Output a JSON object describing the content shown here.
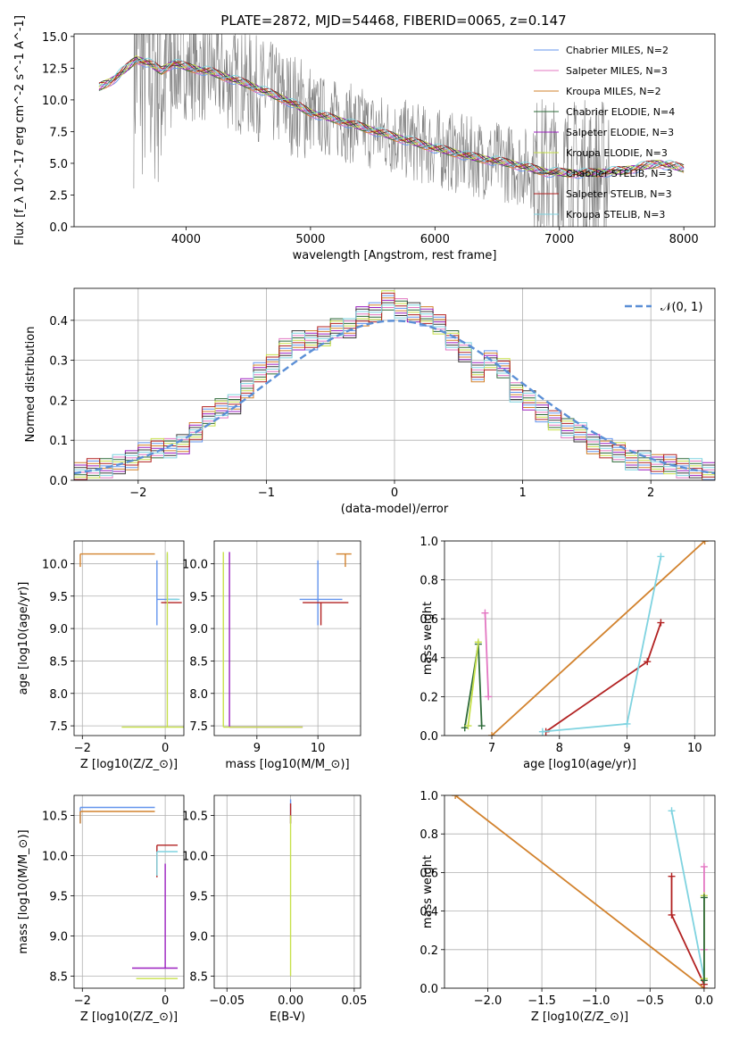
{
  "figure": {
    "title": "PLATE=2872, MJD=54468, FIBERID=0065, z=0.147"
  },
  "colors": {
    "observed": "#808080",
    "models": [
      "#6495ed",
      "#e377c2",
      "#d2822d",
      "#2e6b3a",
      "#9b1fbf",
      "#c7e04a",
      "#3c3c3c",
      "#b22222",
      "#7fd3e0"
    ],
    "normal": "#5b8fd6"
  },
  "legend": {
    "models": [
      "Chabrier MILES, N$_{SSP}$=2",
      "Salpeter MILES, N$_{SSP}$=3",
      "Kroupa MILES, N$_{SSP}$=2",
      "Chabrier ELODIE, N$_{SSP}$=4",
      "Salpeter ELODIE, N$_{SSP}$=3",
      "Kroupa ELODIE, N$_{SSP}$=3",
      "Chabrier STELIB, N$_{SSP}$=3",
      "Salpeter STELIB, N$_{SSP}$=3",
      "Kroupa STELIB, N$_{SSP}$=3"
    ],
    "normal": "𝒩(0, 1)"
  },
  "chart_data": [
    {
      "id": "spectrum",
      "type": "line",
      "title": "PLATE=2872, MJD=54468, FIBERID=0065, z=0.147",
      "xlabel": "wavelength [Angstrom, rest frame]",
      "ylabel": "Flux [f_λ 10^-17 erg cm^-2 s^-1 A^-1]",
      "xlim": [
        3100,
        8250
      ],
      "ylim": [
        0,
        15.2
      ],
      "xticks": [
        4000,
        5000,
        6000,
        7000,
        8000
      ],
      "yticks": [
        0.0,
        2.5,
        5.0,
        7.5,
        10.0,
        12.5,
        15.0
      ],
      "ytick_labels": [
        "0.0",
        "2.5",
        "5.0",
        "7.5",
        "10.0",
        "12.5",
        "15.0"
      ],
      "model_continuum": {
        "x": [
          3300,
          3400,
          3500,
          3600,
          3700,
          3800,
          3900,
          4000,
          4200,
          4500,
          4800,
          5000,
          5300,
          5600,
          6000,
          6300,
          6600,
          6900,
          7200,
          7500,
          7800,
          8000
        ],
        "y": [
          11.0,
          11.5,
          12.3,
          13.2,
          12.9,
          12.3,
          12.9,
          12.6,
          12.2,
          11.2,
          10.0,
          9.0,
          8.2,
          7.3,
          6.2,
          5.5,
          5.0,
          4.3,
          4.2,
          4.4,
          5.0,
          4.6
        ]
      },
      "grid": false,
      "legend_position": "top-right"
    },
    {
      "id": "residuals",
      "type": "histogram",
      "xlabel": "(data-model)/error",
      "ylabel": "Normed distribution",
      "xlim": [
        -2.5,
        2.5
      ],
      "ylim": [
        0,
        0.48
      ],
      "xticks": [
        -2,
        -1,
        0,
        1,
        2
      ],
      "xtick_labels": [
        "−2",
        "−1",
        "0",
        "1",
        "2"
      ],
      "yticks": [
        0.0,
        0.1,
        0.2,
        0.3,
        0.4
      ],
      "ytick_labels": [
        "0.0",
        "0.1",
        "0.2",
        "0.3",
        "0.4"
      ],
      "bin_edges_start": -2.5,
      "bin_width": 0.1,
      "hist": [
        0.02,
        0.03,
        0.03,
        0.04,
        0.05,
        0.07,
        0.08,
        0.08,
        0.09,
        0.12,
        0.16,
        0.18,
        0.19,
        0.23,
        0.27,
        0.29,
        0.33,
        0.35,
        0.35,
        0.36,
        0.38,
        0.38,
        0.41,
        0.42,
        0.45,
        0.43,
        0.42,
        0.41,
        0.39,
        0.35,
        0.32,
        0.27,
        0.3,
        0.28,
        0.22,
        0.2,
        0.17,
        0.15,
        0.13,
        0.12,
        0.09,
        0.08,
        0.07,
        0.05,
        0.05,
        0.04,
        0.04,
        0.03,
        0.03,
        0.02
      ],
      "grid": true,
      "legend_position": "top-right"
    },
    {
      "id": "age-vs-z",
      "type": "scatter",
      "xlabel": "Z [log10(Z/Z_⊙)]",
      "ylabel": "age [log10(age/yr)]",
      "xlim": [
        -2.2,
        0.45
      ],
      "ylim": [
        7.35,
        10.35
      ],
      "xticks": [
        -2,
        0
      ],
      "xtick_labels": [
        "−2",
        "0"
      ],
      "yticks": [
        7.5,
        8.0,
        8.5,
        9.0,
        9.5,
        10.0
      ],
      "ytick_labels": [
        "7.5",
        "8.0",
        "8.5",
        "9.0",
        "9.5",
        "10.0"
      ],
      "errorbars": [
        {
          "x": -2.05,
          "y": 10.15,
          "xerr": [
            0.0,
            1.8
          ],
          "yerr": [
            0.2,
            0.0
          ],
          "series": 2
        },
        {
          "x": -0.2,
          "y": 9.45,
          "xerr": [
            0.0,
            0.5
          ],
          "yerr": [
            0.4,
            0.6
          ],
          "series": 0
        },
        {
          "x": -0.1,
          "y": 9.4,
          "xerr": [
            0.0,
            0.5
          ],
          "yerr": [
            0.0,
            0.0
          ],
          "series": 7
        },
        {
          "x": 0.05,
          "y": 9.45,
          "xerr": [
            0.0,
            0.3
          ],
          "yerr": [
            0.0,
            0.7
          ],
          "series": 8
        },
        {
          "x": 0.05,
          "y": 7.48,
          "xerr": [
            1.1,
            0.4
          ],
          "yerr": [
            0.0,
            2.7
          ],
          "series": 5
        }
      ],
      "grid": true
    },
    {
      "id": "age-vs-mass",
      "type": "scatter",
      "xlabel": "mass [log10(M/M_⊙)]",
      "ylabel": "",
      "xlim": [
        8.3,
        10.7
      ],
      "ylim": [
        7.35,
        10.35
      ],
      "xticks": [
        9,
        10
      ],
      "xtick_labels": [
        "9",
        "10"
      ],
      "yticks": [
        7.5,
        8.0,
        8.5,
        9.0,
        9.5,
        10.0
      ],
      "ytick_labels": [
        "7.5",
        "8.0",
        "8.5",
        "9.0",
        "9.5",
        "10.0"
      ],
      "errorbars": [
        {
          "x": 10.0,
          "y": 9.45,
          "xerr": [
            0.3,
            0.4
          ],
          "yerr": [
            0.4,
            0.6
          ],
          "series": 0
        },
        {
          "x": 10.05,
          "y": 9.4,
          "xerr": [
            0.3,
            0.45
          ],
          "yerr": [
            0.35,
            0.0
          ],
          "series": 7
        },
        {
          "x": 10.45,
          "y": 10.15,
          "xerr": [
            0.15,
            0.1
          ],
          "yerr": [
            0.2,
            0.0
          ],
          "series": 2
        },
        {
          "x": 8.55,
          "y": 7.48,
          "xerr": [
            0.0,
            1.2
          ],
          "yerr": [
            0.0,
            2.7
          ],
          "series": 4
        },
        {
          "x": 8.45,
          "y": 7.48,
          "xerr": [
            0.0,
            1.3
          ],
          "yerr": [
            0.0,
            2.7
          ],
          "series": 5
        }
      ],
      "grid": true
    },
    {
      "id": "massweight-vs-age",
      "type": "line",
      "xlabel": "age [log10(age/yr)]",
      "ylabel": "mass weight",
      "xlim": [
        6.3,
        10.3
      ],
      "ylim": [
        0,
        1.0
      ],
      "xticks": [
        7,
        8,
        9,
        10
      ],
      "xtick_labels": [
        "7",
        "8",
        "9",
        "10"
      ],
      "yticks": [
        0.0,
        0.2,
        0.4,
        0.6,
        0.8,
        1.0
      ],
      "ytick_labels": [
        "0.0",
        "0.2",
        "0.4",
        "0.6",
        "0.8",
        "1.0"
      ],
      "series": [
        {
          "color": 2,
          "x": [
            7.0,
            10.15
          ],
          "y": [
            0.0,
            1.0
          ]
        },
        {
          "color": 7,
          "x": [
            7.8,
            9.3,
            9.5
          ],
          "y": [
            0.02,
            0.38,
            0.58
          ]
        },
        {
          "color": 8,
          "x": [
            7.75,
            9.0,
            9.5
          ],
          "y": [
            0.02,
            0.06,
            0.92
          ]
        },
        {
          "color": 1,
          "x": [
            6.9,
            6.95
          ],
          "y": [
            0.63,
            0.2
          ]
        },
        {
          "color": 3,
          "x": [
            6.6,
            6.8,
            6.85
          ],
          "y": [
            0.04,
            0.47,
            0.05
          ]
        },
        {
          "color": 5,
          "x": [
            6.65,
            6.8
          ],
          "y": [
            0.05,
            0.48
          ]
        }
      ],
      "grid": true
    },
    {
      "id": "mass-vs-z",
      "type": "scatter",
      "xlabel": "Z [log10(Z/Z_⊙)]",
      "ylabel": "mass [log10(M/M_⊙)]",
      "xlim": [
        -2.2,
        0.45
      ],
      "ylim": [
        8.35,
        10.75
      ],
      "xticks": [
        -2,
        0
      ],
      "xtick_labels": [
        "−2",
        "0"
      ],
      "yticks": [
        8.5,
        9.0,
        9.5,
        10.0,
        10.5
      ],
      "ytick_labels": [
        "8.5",
        "9.0",
        "9.5",
        "10.0",
        "10.5"
      ],
      "errorbars": [
        {
          "x": -2.05,
          "y": 10.6,
          "xerr": [
            0.0,
            1.8
          ],
          "yerr": [
            0.2,
            0.0
          ],
          "series": 0
        },
        {
          "x": -2.05,
          "y": 10.55,
          "xerr": [
            0.0,
            1.8
          ],
          "yerr": [
            0.15,
            0.0
          ],
          "series": 2
        },
        {
          "x": -0.2,
          "y": 10.13,
          "xerr": [
            0.0,
            0.5
          ],
          "yerr": [
            0.4,
            0.0
          ],
          "series": 7
        },
        {
          "x": -0.2,
          "y": 10.05,
          "xerr": [
            0.0,
            0.5
          ],
          "yerr": [
            0.3,
            0.0
          ],
          "series": 8
        },
        {
          "x": 0.0,
          "y": 8.6,
          "xerr": [
            0.8,
            0.3
          ],
          "yerr": [
            0.0,
            1.3
          ],
          "series": 4
        },
        {
          "x": 0.0,
          "y": 8.47,
          "xerr": [
            0.7,
            0.3
          ],
          "yerr": [
            0.0,
            0.0
          ],
          "series": 5
        }
      ],
      "grid": true
    },
    {
      "id": "mass-vs-ebv",
      "type": "scatter",
      "xlabel": "E(B-V)",
      "ylabel": "",
      "xlim": [
        -0.06,
        0.055
      ],
      "ylim": [
        8.35,
        10.75
      ],
      "xticks": [
        -0.05,
        0.0,
        0.05
      ],
      "xtick_labels": [
        "−0.05",
        "0.00",
        "0.05"
      ],
      "yticks": [
        8.5,
        9.0,
        9.5,
        10.0,
        10.5
      ],
      "ytick_labels": [
        "8.5",
        "9.0",
        "9.5",
        "10.0",
        "10.5"
      ],
      "errorbars": [
        {
          "x": 0.0,
          "y": 10.6,
          "xerr": [
            0.0,
            0.0
          ],
          "yerr": [
            0.2,
            0.1
          ],
          "series": 0
        },
        {
          "x": 0.0,
          "y": 10.55,
          "xerr": [
            0.0,
            0.0
          ],
          "yerr": [
            0.15,
            0.1
          ],
          "series": 7
        },
        {
          "x": 0.0,
          "y": 9.5,
          "xerr": [
            0.0,
            0.0
          ],
          "yerr": [
            1.0,
            1.0
          ],
          "series": 5
        }
      ],
      "grid": true
    },
    {
      "id": "massweight-vs-z",
      "type": "line",
      "xlabel": "Z [log10(Z/Z_⊙)]",
      "ylabel": "mass weight",
      "xlim": [
        -2.4,
        0.1
      ],
      "ylim": [
        0,
        1.0
      ],
      "xticks": [
        -2.0,
        -1.5,
        -1.0,
        -0.5,
        0.0
      ],
      "xtick_labels": [
        "−2.0",
        "−1.5",
        "−1.0",
        "−0.5",
        "0.0"
      ],
      "yticks": [
        0.0,
        0.2,
        0.4,
        0.6,
        0.8,
        1.0
      ],
      "ytick_labels": [
        "0.0",
        "0.2",
        "0.4",
        "0.6",
        "0.8",
        "1.0"
      ],
      "series": [
        {
          "color": 2,
          "x": [
            -2.3,
            0.0
          ],
          "y": [
            1.0,
            0.0
          ]
        },
        {
          "color": 7,
          "x": [
            -0.3,
            -0.3,
            0.0
          ],
          "y": [
            0.58,
            0.38,
            0.02
          ]
        },
        {
          "color": 8,
          "x": [
            -0.3,
            0.0
          ],
          "y": [
            0.92,
            0.05
          ]
        },
        {
          "color": 1,
          "x": [
            0.0,
            0.0
          ],
          "y": [
            0.63,
            0.2
          ]
        },
        {
          "color": 5,
          "x": [
            0.0,
            0.0
          ],
          "y": [
            0.48,
            0.05
          ]
        },
        {
          "color": 3,
          "x": [
            0.0,
            0.0
          ],
          "y": [
            0.47,
            0.04
          ]
        }
      ],
      "grid": true
    }
  ]
}
